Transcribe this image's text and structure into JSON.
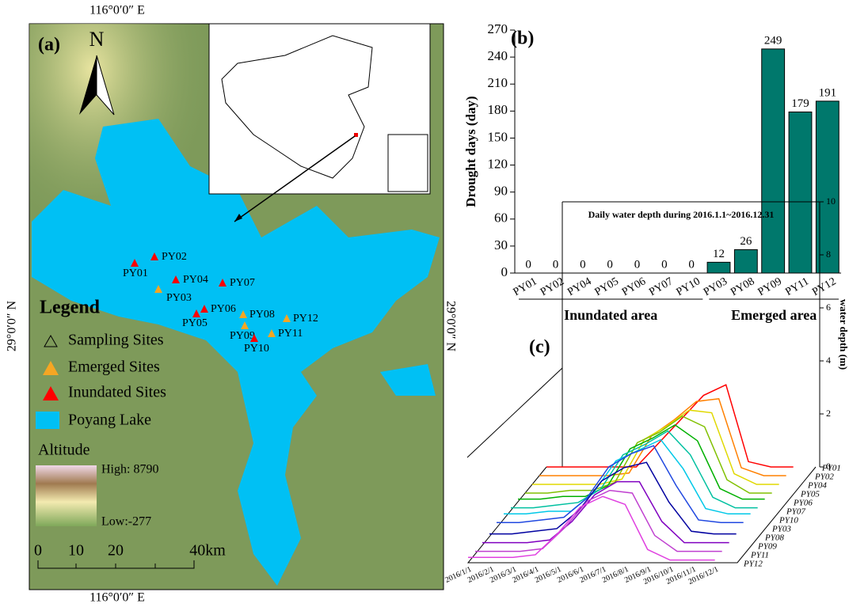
{
  "map": {
    "panel_label": "(a)",
    "north": "N",
    "lon_label": "116°0′0″ E",
    "lat_label": "29°0′0″ N",
    "sites": [
      {
        "name": "PY01",
        "type": "inundated"
      },
      {
        "name": "PY02",
        "type": "inundated"
      },
      {
        "name": "PY04",
        "type": "inundated"
      },
      {
        "name": "PY07",
        "type": "inundated"
      },
      {
        "name": "PY03",
        "type": "emerged"
      },
      {
        "name": "PY06",
        "type": "inundated"
      },
      {
        "name": "PY05",
        "type": "inundated"
      },
      {
        "name": "PY08",
        "type": "emerged"
      },
      {
        "name": "PY12",
        "type": "emerged"
      },
      {
        "name": "PY09",
        "type": "emerged"
      },
      {
        "name": "PY11",
        "type": "emerged"
      },
      {
        "name": "PY10",
        "type": "inundated"
      }
    ],
    "legend": {
      "title": "Legend",
      "sampling": "Sampling Sites",
      "emerged": "Emerged Sites",
      "inundated": "Inundated Sites",
      "lake": "Poyang Lake",
      "altitude": "Altitude",
      "high": "High: 8790",
      "low": "Low:-277"
    },
    "scale_labels": [
      "0",
      "10",
      "20",
      "40km"
    ]
  },
  "chart_data": [
    {
      "type": "bar",
      "title": "(b)",
      "ylabel": "Drought days (day)",
      "color": "#00786c",
      "categories": [
        "PY01",
        "PY02",
        "PY04",
        "PY05",
        "PY06",
        "PY07",
        "PY10",
        "PY03",
        "PY08",
        "PY09",
        "PY11",
        "PY12"
      ],
      "values": [
        0,
        0,
        0,
        0,
        0,
        0,
        0,
        12,
        26,
        249,
        179,
        191
      ],
      "ylim": [
        0,
        270
      ],
      "yticks": [
        0,
        30,
        60,
        90,
        120,
        150,
        180,
        210,
        240,
        270
      ],
      "groups": [
        {
          "name": "Inundated area",
          "count": 7
        },
        {
          "name": "Emerged area",
          "count": 5
        }
      ]
    },
    {
      "type": "waterfall",
      "title": "(c)",
      "subtitle": "Daily water depth during 2016.1.1~2016.12.31",
      "ylabel": "water depth (m)",
      "x": [
        "2016/1/1",
        "2016/2/1",
        "2016/3/1",
        "2016/4/1",
        "2016/5/1",
        "2016/6/1",
        "2016/7/1",
        "2016/8/1",
        "2016/9/1",
        "2016/10/1",
        "2016/11/1",
        "2016/12/1"
      ],
      "ylim": [
        0,
        10
      ],
      "yticks": [
        0,
        2,
        4,
        6,
        8,
        10
      ],
      "series": [
        {
          "name": "PY01",
          "color": "#ff0000",
          "values": [
            0,
            0,
            0,
            0,
            0,
            0.9,
            1.8,
            2.7,
            3.1,
            0.2,
            0,
            0
          ]
        },
        {
          "name": "PY02",
          "color": "#ff8000",
          "values": [
            0,
            0,
            0,
            0,
            0.1,
            1.5,
            2.1,
            2.8,
            2.9,
            0.3,
            0,
            0
          ]
        },
        {
          "name": "PY04",
          "color": "#e0d800",
          "values": [
            0,
            0,
            0,
            0,
            0.2,
            1.7,
            2.2,
            2.8,
            2.7,
            0.4,
            0,
            0
          ]
        },
        {
          "name": "PY05",
          "color": "#80c000",
          "values": [
            0,
            0,
            0.1,
            0.1,
            0.4,
            1.9,
            2.3,
            2.9,
            2.5,
            0.5,
            0,
            0
          ]
        },
        {
          "name": "PY06",
          "color": "#00b000",
          "values": [
            0.1,
            0.1,
            0.2,
            0.2,
            0.6,
            2.0,
            2.4,
            2.9,
            2.3,
            0.5,
            0.1,
            0.1
          ]
        },
        {
          "name": "PY07",
          "color": "#00c0a0",
          "values": [
            0.1,
            0.1,
            0.2,
            0.3,
            0.8,
            2.1,
            2.5,
            3.0,
            2.1,
            0.5,
            0.1,
            0.1
          ]
        },
        {
          "name": "PY10",
          "color": "#00c8e8",
          "values": [
            0.2,
            0.2,
            0.3,
            0.3,
            1.0,
            2.2,
            2.6,
            3.0,
            1.9,
            0.4,
            0.2,
            0.2
          ]
        },
        {
          "name": "PY03",
          "color": "#2048e0",
          "values": [
            0.2,
            0.2,
            0.3,
            0.4,
            1.1,
            2.3,
            2.8,
            3.1,
            1.6,
            0.3,
            0.2,
            0.2
          ]
        },
        {
          "name": "PY08",
          "color": "#0000a0",
          "values": [
            0.1,
            0.1,
            0.2,
            0.3,
            1.0,
            2.1,
            2.6,
            2.8,
            1.3,
            0.2,
            0.1,
            0.1
          ]
        },
        {
          "name": "PY09",
          "color": "#8000c0",
          "values": [
            0.1,
            0.1,
            0.1,
            0.2,
            0.9,
            1.9,
            2.4,
            2.4,
            0.9,
            0.1,
            0.1,
            0.1
          ]
        },
        {
          "name": "PY11",
          "color": "#c040d0",
          "values": [
            0.1,
            0.1,
            0.1,
            0.2,
            1.0,
            2.0,
            2.4,
            2.3,
            0.7,
            0.1,
            0.1,
            0.1
          ]
        },
        {
          "name": "PY12",
          "color": "#e040e0",
          "values": [
            0.2,
            0.2,
            0.2,
            0.3,
            1.1,
            2.1,
            2.5,
            2.2,
            0.5,
            0.1,
            0.1,
            0.1
          ]
        }
      ]
    }
  ]
}
